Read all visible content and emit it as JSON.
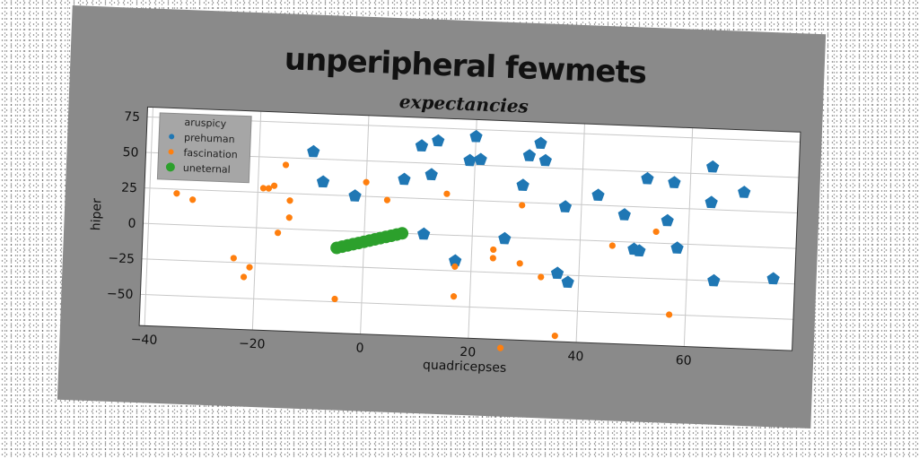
{
  "chart_data": {
    "type": "scatter",
    "suptitle": "unperipheral fewmets",
    "title": "expectancies",
    "xlabel": "quadricepses",
    "ylabel": "hiper",
    "xlim": [
      -41,
      80
    ],
    "ylim": [
      -72,
      82
    ],
    "xticks": [
      -40,
      -20,
      0,
      20,
      40,
      60
    ],
    "yticks": [
      -50,
      -25,
      0,
      25,
      50,
      75
    ],
    "grid": true,
    "legend": {
      "title": "aruspicy",
      "position": "top-left"
    },
    "series": [
      {
        "name": "prehuman",
        "color": "#1f77b4",
        "marker": "pentagon",
        "points": [
          [
            -10,
            55
          ],
          [
            -8,
            34
          ],
          [
            -2,
            25
          ],
          [
            7,
            38
          ],
          [
            10,
            62
          ],
          [
            12,
            42
          ],
          [
            13,
            66
          ],
          [
            11,
            0
          ],
          [
            17,
            -18
          ],
          [
            19,
            53
          ],
          [
            20,
            70
          ],
          [
            21,
            54
          ],
          [
            26,
            -1
          ],
          [
            29,
            37
          ],
          [
            30,
            58
          ],
          [
            32,
            67
          ],
          [
            33,
            55
          ],
          [
            36,
            -24
          ],
          [
            37,
            23
          ],
          [
            38,
            -30
          ],
          [
            43,
            32
          ],
          [
            48,
            19
          ],
          [
            50,
            -5
          ],
          [
            51,
            -6
          ],
          [
            52,
            45
          ],
          [
            56,
            16
          ],
          [
            57,
            43
          ],
          [
            58,
            -3
          ],
          [
            64,
            55
          ],
          [
            64,
            30
          ],
          [
            65,
            -25
          ],
          [
            70,
            38
          ],
          [
            76,
            -22
          ]
        ]
      },
      {
        "name": "fascination",
        "color": "#ff7f0e",
        "marker": "circle",
        "points": [
          [
            -35,
            22
          ],
          [
            -32,
            18
          ],
          [
            -24,
            -22
          ],
          [
            -22,
            -35
          ],
          [
            -21,
            -28
          ],
          [
            -19,
            28
          ],
          [
            -18,
            28
          ],
          [
            -17,
            30
          ],
          [
            -16,
            -3
          ],
          [
            -15,
            45
          ],
          [
            -14,
            20
          ],
          [
            -14,
            8
          ],
          [
            -5,
            -48
          ],
          [
            0,
            35
          ],
          [
            4,
            23
          ],
          [
            15,
            29
          ],
          [
            17,
            -22
          ],
          [
            17,
            -43
          ],
          [
            24,
            -15
          ],
          [
            24,
            -9
          ],
          [
            26,
            -78
          ],
          [
            29,
            23
          ],
          [
            29,
            -18
          ],
          [
            33,
            -27
          ],
          [
            36,
            -68
          ],
          [
            46,
            -3
          ],
          [
            54,
            8
          ],
          [
            57,
            -50
          ]
        ]
      },
      {
        "name": "uneternal",
        "color": "#2ca02c",
        "marker": "circle",
        "points": [
          [
            -5,
            -12
          ],
          [
            -4,
            -11
          ],
          [
            -3,
            -10
          ],
          [
            -2,
            -9
          ],
          [
            -1,
            -8
          ],
          [
            0,
            -7
          ],
          [
            1,
            -6
          ],
          [
            2,
            -5
          ],
          [
            3,
            -4
          ],
          [
            4,
            -3
          ],
          [
            5,
            -2
          ],
          [
            6,
            -1
          ],
          [
            7,
            0
          ]
        ]
      }
    ]
  }
}
